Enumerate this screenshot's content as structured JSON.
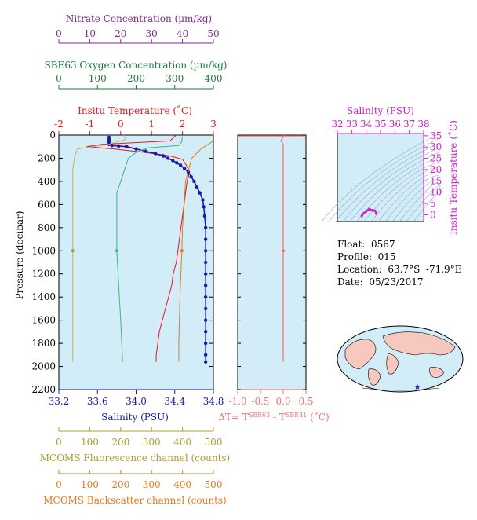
{
  "float_info": {
    "float_label": "Float:  0567",
    "profile_label": "Profile:  015",
    "location_label": "Location:  63.7°S  -71.9°E",
    "date_label": "Date:  05/23/2017"
  },
  "chart_data": [
    {
      "type": "line",
      "panel": "main-profile",
      "ylabel": "Pressure (decibar)",
      "y_ticks": [
        0,
        200,
        400,
        600,
        800,
        1000,
        1200,
        1400,
        1600,
        1800,
        2000,
        2200
      ],
      "ylim": [
        2200,
        0
      ],
      "axes": {
        "nitrate": {
          "title": "Nitrate Concentration (µm/kg)",
          "ticks": [
            0,
            10,
            20,
            30,
            40,
            50
          ],
          "lim": [
            0,
            50
          ],
          "color": "#7f2a8c"
        },
        "oxygen": {
          "title": "SBE63 Oxygen Concentration (µm/kg)",
          "ticks": [
            0,
            100,
            200,
            300,
            400
          ],
          "lim": [
            0,
            400
          ],
          "color": "#1a7a3a"
        },
        "temperature": {
          "title": "Insitu Temperature (˚C)",
          "ticks": [
            -2,
            -1,
            0,
            1,
            2,
            3
          ],
          "lim": [
            -2,
            3
          ],
          "color": "#e8141b"
        },
        "salinity": {
          "title": "Salinity (PSU)",
          "ticks": [
            "33.2",
            "33.6",
            "34.0",
            "34.4",
            "34.8"
          ],
          "lim": [
            33.2,
            34.8
          ],
          "color": "#1a1aa8"
        },
        "fluorescence": {
          "title": "MCOMS Fluorescence channel (counts)",
          "ticks": [
            0,
            100,
            200,
            300,
            400,
            500
          ],
          "lim": [
            0,
            500
          ],
          "color": "#a8a032"
        },
        "backscatter": {
          "title": "MCOMS Backscatter channel (counts)",
          "ticks": [
            0,
            100,
            200,
            300,
            400,
            500
          ],
          "lim": [
            0,
            500
          ],
          "color": "#e07a1e"
        }
      },
      "series": [
        {
          "axis": "temperature",
          "color": "#e8141b",
          "points": [
            [
              1.8,
              0
            ],
            [
              1.6,
              50
            ],
            [
              -0.6,
              80
            ],
            [
              -1.1,
              100
            ],
            [
              -0.2,
              120
            ],
            [
              0.8,
              150
            ],
            [
              1.6,
              180
            ],
            [
              2.0,
              210
            ],
            [
              2.1,
              250
            ],
            [
              2.2,
              300
            ],
            [
              2.2,
              350
            ],
            [
              2.15,
              400
            ],
            [
              2.1,
              500
            ],
            [
              2.05,
              600
            ],
            [
              2.0,
              700
            ],
            [
              1.95,
              800
            ],
            [
              1.9,
              900
            ],
            [
              1.85,
              1000
            ],
            [
              1.8,
              1100
            ],
            [
              1.7,
              1200
            ],
            [
              1.65,
              1300
            ],
            [
              1.55,
              1400
            ],
            [
              1.45,
              1500
            ],
            [
              1.35,
              1600
            ],
            [
              1.25,
              1700
            ],
            [
              1.2,
              1800
            ],
            [
              1.15,
              1900
            ],
            [
              1.15,
              1960
            ]
          ]
        },
        {
          "axis": "salinity",
          "color": "#1a1aa8",
          "markers": true,
          "points": [
            [
              33.72,
              20
            ],
            [
              33.72,
              40
            ],
            [
              33.72,
              60
            ],
            [
              33.72,
              80
            ],
            [
              33.75,
              90
            ],
            [
              33.82,
              95
            ],
            [
              33.9,
              100
            ],
            [
              34.0,
              120
            ],
            [
              34.1,
              140
            ],
            [
              34.2,
              160
            ],
            [
              34.28,
              180
            ],
            [
              34.33,
              200
            ],
            [
              34.38,
              220
            ],
            [
              34.42,
              240
            ],
            [
              34.46,
              260
            ],
            [
              34.5,
              290
            ],
            [
              34.54,
              320
            ],
            [
              34.57,
              360
            ],
            [
              34.6,
              400
            ],
            [
              34.63,
              450
            ],
            [
              34.66,
              500
            ],
            [
              34.69,
              560
            ],
            [
              34.7,
              620
            ],
            [
              34.71,
              700
            ],
            [
              34.72,
              800
            ],
            [
              34.72,
              900
            ],
            [
              34.72,
              1000
            ],
            [
              34.72,
              1100
            ],
            [
              34.72,
              1200
            ],
            [
              34.72,
              1300
            ],
            [
              34.72,
              1400
            ],
            [
              34.72,
              1500
            ],
            [
              34.72,
              1600
            ],
            [
              34.72,
              1700
            ],
            [
              34.72,
              1800
            ],
            [
              34.72,
              1900
            ],
            [
              34.72,
              1960
            ]
          ]
        },
        {
          "axis": "oxygen",
          "color": "#3cb878",
          "points": [
            [
              320,
              10
            ],
            [
              318,
              60
            ],
            [
              310,
              90
            ],
            [
              230,
              110
            ],
            [
              200,
              150
            ],
            [
              180,
              200
            ],
            [
              170,
              300
            ],
            [
              160,
              400
            ],
            [
              150,
              500
            ],
            [
              150,
              700
            ],
            [
              150,
              1000
            ],
            [
              155,
              1300
            ],
            [
              160,
              1600
            ],
            [
              165,
              1960
            ]
          ]
        },
        {
          "axis": "fluorescence",
          "color": "#c7b268",
          "points": [
            [
              210,
              0
            ],
            [
              215,
              40
            ],
            [
              160,
              80
            ],
            [
              60,
              120
            ],
            [
              50,
              200
            ],
            [
              45,
              300
            ],
            [
              45,
              600
            ],
            [
              45,
              1000
            ],
            [
              45,
              1400
            ],
            [
              45,
              1960
            ]
          ]
        },
        {
          "axis": "backscatter",
          "color": "#e07a1e",
          "points": [
            [
              500,
              50
            ],
            [
              460,
              120
            ],
            [
              430,
              200
            ],
            [
              420,
              300
            ],
            [
              410,
              400
            ],
            [
              405,
              600
            ],
            [
              400,
              800
            ],
            [
              398,
              1000
            ],
            [
              395,
              1200
            ],
            [
              392,
              1400
            ],
            [
              390,
              1600
            ],
            [
              388,
              1800
            ],
            [
              388,
              1960
            ]
          ]
        }
      ],
      "single_points": [
        {
          "axis": "fluorescence",
          "x": 45,
          "y": 1000,
          "color": "#a8a032"
        },
        {
          "axis": "oxygen",
          "x": 150,
          "y": 1000,
          "color": "#3cb878"
        },
        {
          "axis": "backscatter",
          "x": 398,
          "y": 1000,
          "color": "#e07a1e"
        }
      ]
    },
    {
      "type": "line",
      "panel": "delta-t",
      "xlabel": "ΔT= T",
      "xlabel_sup1": "SBE63",
      "xlabel_mid": " - T",
      "xlabel_sup2": "SBE41",
      "xlabel_end": " (˚C)",
      "x_ticks": [
        "-1.0",
        "-0.5",
        "0.0",
        "0.5"
      ],
      "xlim": [
        -1.0,
        0.5
      ],
      "ylim": [
        2200,
        0
      ],
      "color": "#f07070",
      "points": [
        [
          0.02,
          0
        ],
        [
          -0.05,
          50
        ],
        [
          0.0,
          80
        ],
        [
          0.0,
          120
        ],
        [
          0.0,
          200
        ],
        [
          0.0,
          400
        ],
        [
          0.0,
          600
        ],
        [
          0.0,
          800
        ],
        [
          0.0,
          1000
        ],
        [
          0.0,
          1200
        ],
        [
          0.0,
          1400
        ],
        [
          0.0,
          1600
        ],
        [
          0.0,
          1800
        ],
        [
          0.0,
          1960
        ]
      ],
      "single_points": [
        {
          "x": 0.0,
          "y": 1000
        }
      ]
    },
    {
      "type": "scatter",
      "panel": "ts-diagram",
      "xlabel": "Salinity (PSU)",
      "ylabel": "Insitu Temperature (˚C)",
      "x_ticks": [
        32,
        33,
        34,
        35,
        36,
        37,
        38
      ],
      "y_ticks": [
        0,
        5,
        10,
        15,
        20,
        25,
        30,
        35
      ],
      "xlim": [
        32,
        38
      ],
      "ylim": [
        -3,
        36
      ],
      "color": "#cc22cc",
      "points": [
        [
          33.7,
          -0.5
        ],
        [
          33.8,
          0.5
        ],
        [
          34.0,
          1.5
        ],
        [
          34.2,
          2.5
        ],
        [
          34.4,
          2.0
        ],
        [
          34.6,
          1.8
        ],
        [
          34.7,
          1.0
        ],
        [
          34.7,
          0.5
        ]
      ]
    }
  ]
}
